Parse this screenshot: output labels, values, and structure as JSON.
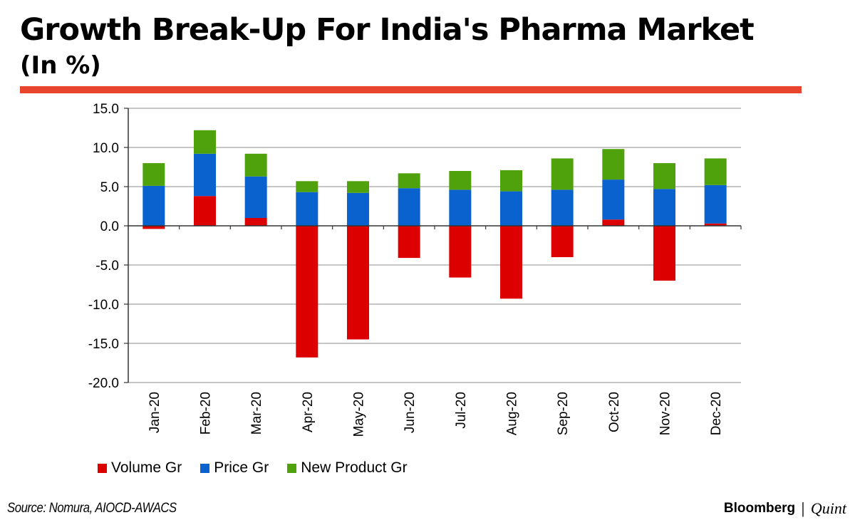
{
  "header": {
    "title": "Growth Break-Up For India's Pharma Market",
    "subtitle": "(In %)"
  },
  "colors": {
    "accent_rule": "#e8442e",
    "volume": "#dd0000",
    "price": "#0a62cf",
    "new_product": "#4fa20c",
    "grid": "#8c8c8c",
    "axis": "#333333"
  },
  "chart_data": {
    "type": "bar",
    "stacked": true,
    "title": "Growth Break-Up For India's Pharma Market",
    "subtitle": "(In %)",
    "xlabel": "",
    "ylabel": "",
    "ylim": [
      -20,
      15
    ],
    "yticks": [
      15,
      10,
      5,
      0,
      -5,
      -10,
      -15,
      -20
    ],
    "ytick_labels": [
      "15.0",
      "10.0",
      "5.0",
      "0.0",
      "-5.0",
      "-10.0",
      "-15.0",
      "-20.0"
    ],
    "grid": true,
    "legend_position": "bottom-left",
    "categories": [
      "Jan-20",
      "Feb-20",
      "Mar-20",
      "Apr-20",
      "May-20",
      "Jun-20",
      "Jul-20",
      "Aug-20",
      "Sep-20",
      "Oct-20",
      "Nov-20",
      "Dec-20"
    ],
    "series": [
      {
        "name": "Volume Gr",
        "color": "#dd0000",
        "values": [
          -0.4,
          3.8,
          1.0,
          -16.8,
          -14.5,
          -4.1,
          -6.6,
          -9.3,
          -4.0,
          0.8,
          -7.0,
          0.3
        ]
      },
      {
        "name": "Price Gr",
        "color": "#0a62cf",
        "values": [
          5.1,
          5.4,
          5.3,
          4.3,
          4.2,
          4.8,
          4.6,
          4.4,
          4.6,
          5.1,
          4.7,
          4.9
        ]
      },
      {
        "name": "New Product Gr",
        "color": "#4fa20c",
        "values": [
          2.9,
          3.0,
          2.9,
          1.4,
          1.5,
          1.9,
          2.4,
          2.7,
          4.0,
          3.9,
          3.3,
          3.4
        ]
      }
    ]
  },
  "legend": [
    {
      "label": "Volume Gr",
      "color": "#dd0000"
    },
    {
      "label": "Price Gr",
      "color": "#0a62cf"
    },
    {
      "label": "New Product Gr",
      "color": "#4fa20c"
    }
  ],
  "footer": {
    "source": "Source: Nomura, AIOCD-AWACS",
    "brand_left": "Bloomberg",
    "brand_sep": "|",
    "brand_right": "Quint"
  }
}
